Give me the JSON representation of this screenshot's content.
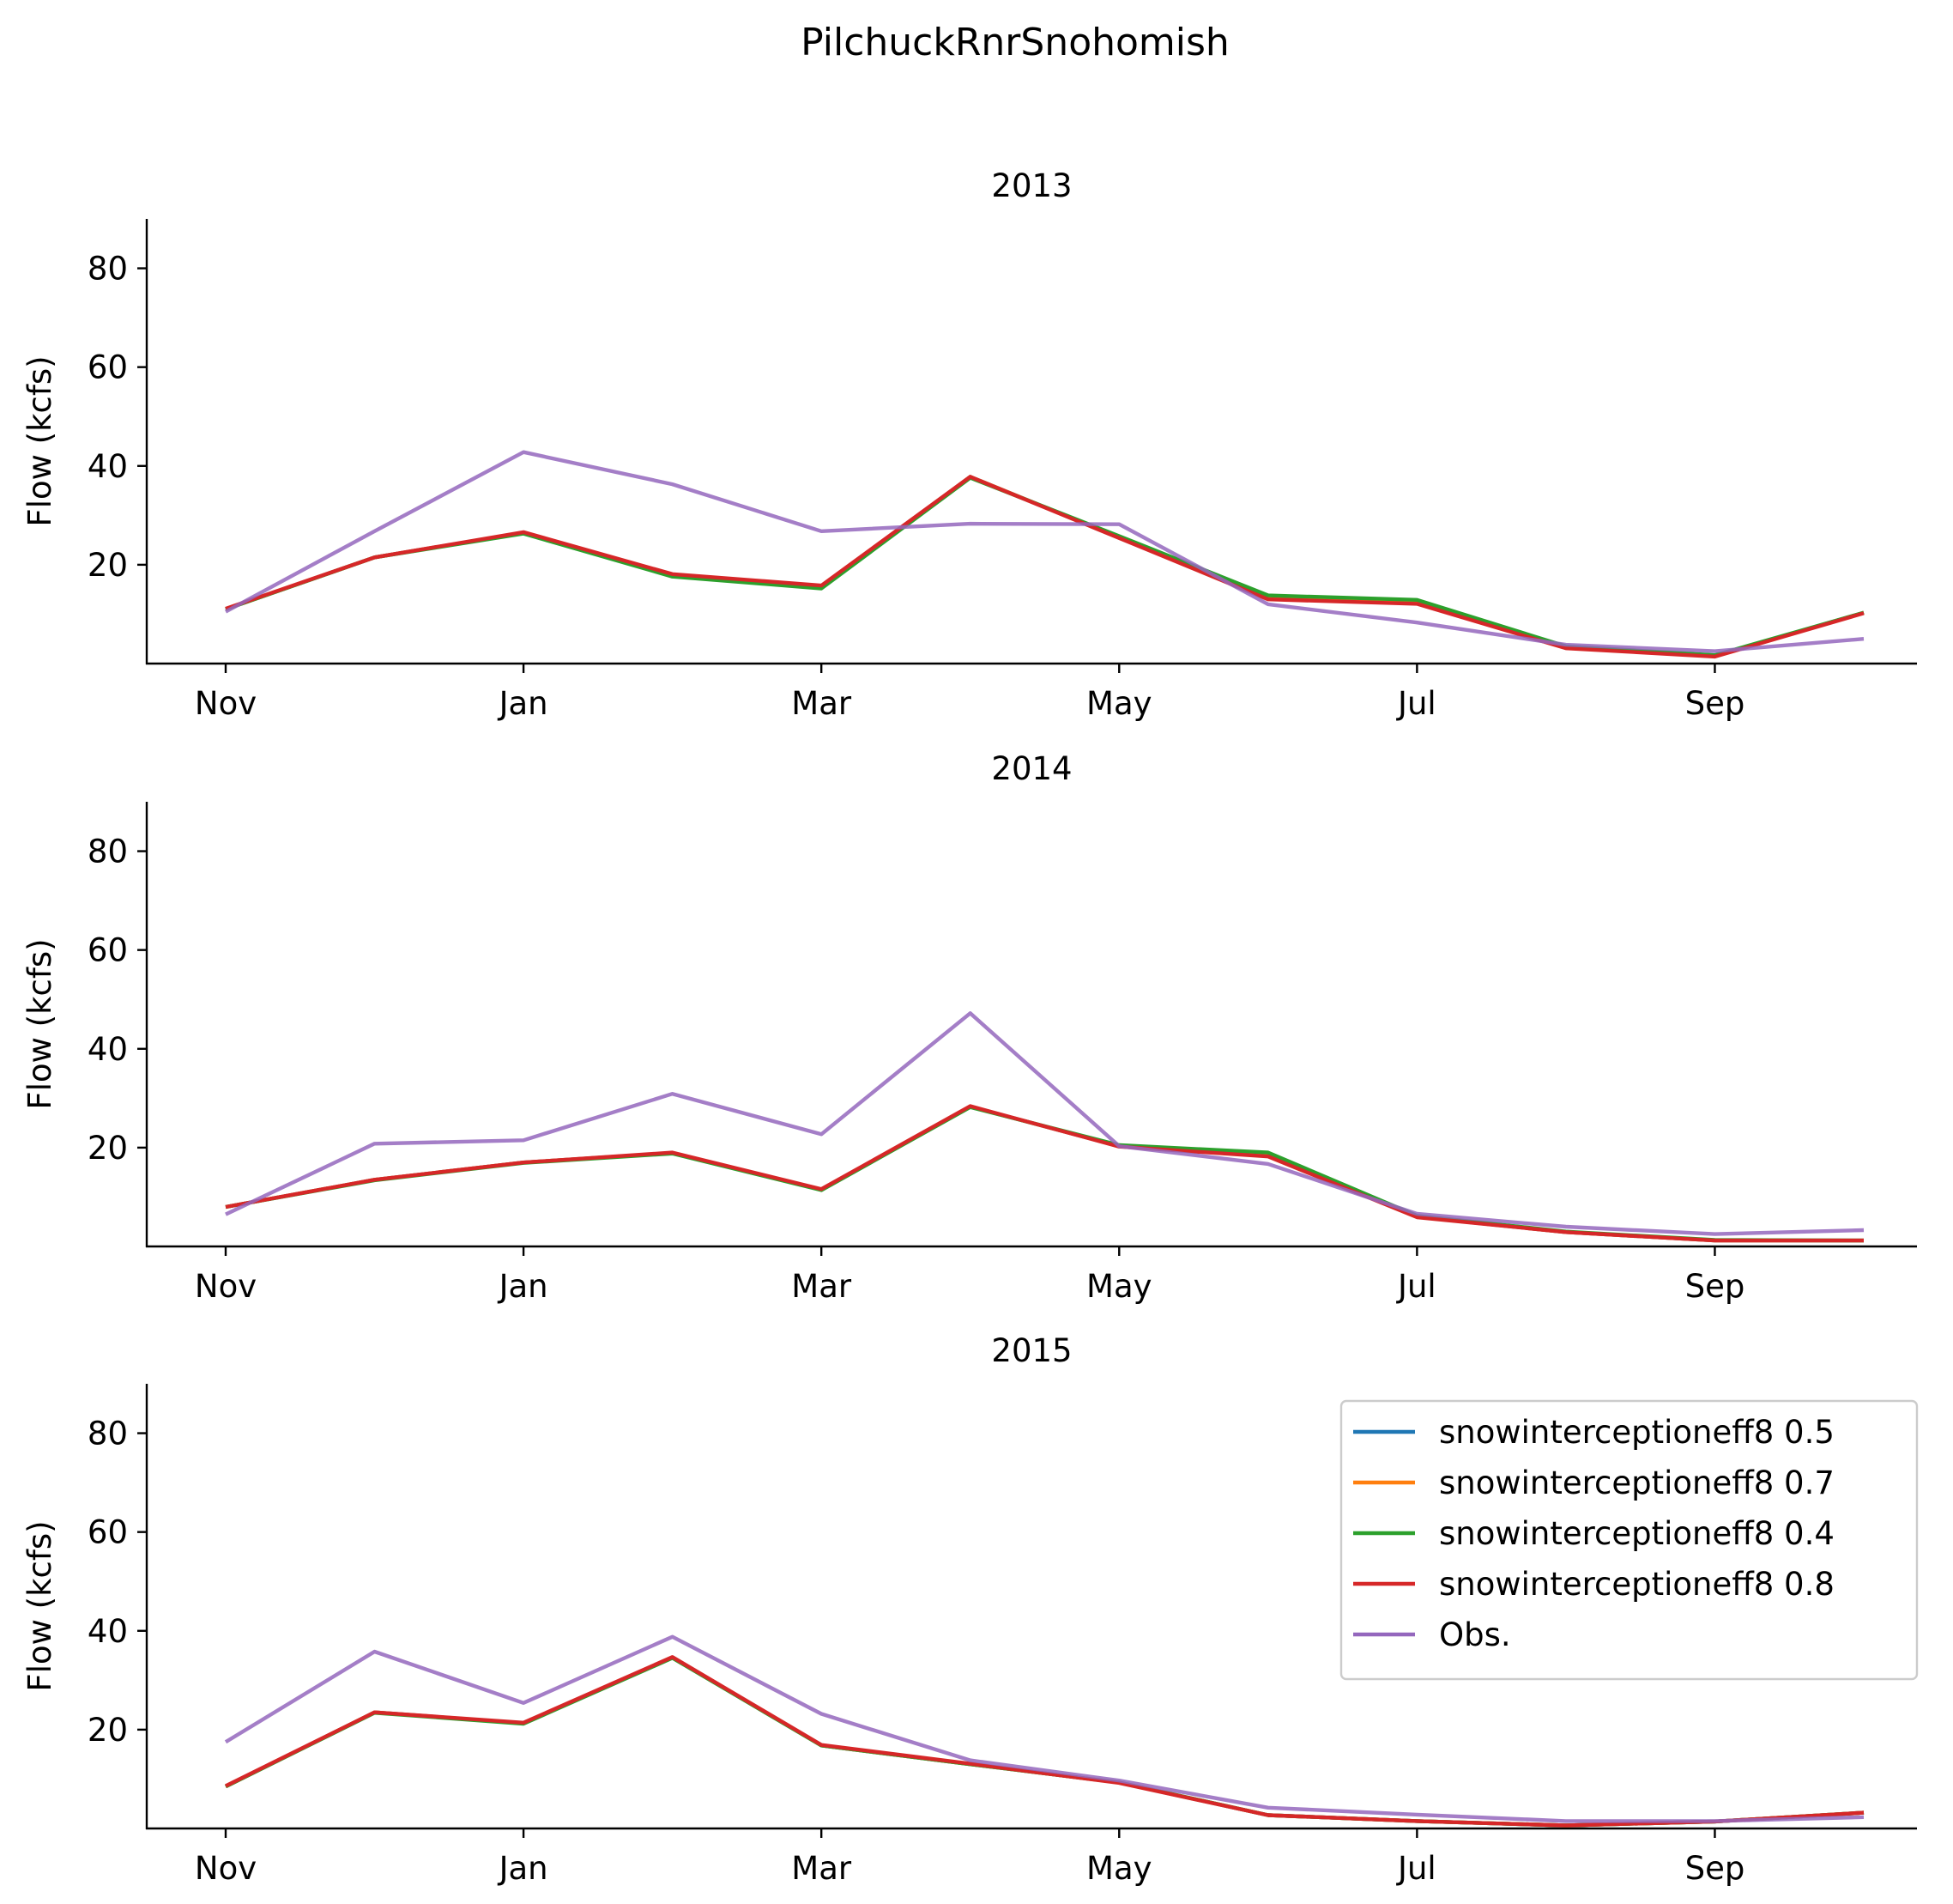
{
  "figure_title": "PilchuckRnrSnohomish",
  "colors": {
    "snowinterceptioneff8 0.5": "#1f77b4",
    "snowinterceptioneff8 0.7": "#ff7f0e",
    "snowinterceptioneff8 0.4": "#2ca02c",
    "snowinterceptioneff8 0.8": "#d62728",
    "Obs.": "#9467bd"
  },
  "chart_data": [
    {
      "type": "line",
      "title": "2013",
      "xlabel": "",
      "ylabel": "Flow (kcfs)",
      "x": [
        "2012-11",
        "2012-12",
        "2013-01",
        "2013-02",
        "2013-03",
        "2013-04",
        "2013-05",
        "2013-06",
        "2013-07",
        "2013-08",
        "2013-09",
        "2013-10"
      ],
      "xticks": [
        "Nov",
        "Jan",
        "Mar",
        "May",
        "Jul",
        "Sep"
      ],
      "yticks": [
        20,
        40,
        60,
        80
      ],
      "ylim": [
        0,
        90
      ],
      "grid": false,
      "series": [
        {
          "name": "snowinterceptioneff8 0.5",
          "values": [
            11.0,
            21.5,
            26.5,
            18.0,
            15.5,
            37.8,
            25.5,
            13.3,
            12.5,
            3.2,
            1.5,
            10.3
          ]
        },
        {
          "name": "snowinterceptioneff8 0.7",
          "values": [
            11.0,
            21.5,
            26.5,
            18.0,
            15.5,
            37.8,
            25.5,
            13.3,
            12.5,
            3.2,
            1.5,
            10.3
          ]
        },
        {
          "name": "snowinterceptioneff8 0.4",
          "values": [
            11.0,
            21.5,
            26.3,
            17.6,
            15.2,
            37.6,
            25.8,
            13.8,
            12.9,
            3.5,
            1.7,
            10.3
          ]
        },
        {
          "name": "snowinterceptioneff8 0.8",
          "values": [
            11.1,
            21.5,
            26.6,
            18.1,
            15.8,
            37.8,
            25.4,
            13.0,
            12.1,
            3.1,
            1.4,
            10.2
          ]
        },
        {
          "name": "Obs.",
          "values": [
            10.5,
            26.8,
            42.8,
            36.3,
            26.8,
            28.3,
            28.2,
            12.0,
            8.3,
            3.8,
            2.5,
            5.0
          ]
        }
      ]
    },
    {
      "type": "line",
      "title": "2014",
      "xlabel": "",
      "ylabel": "Flow (kcfs)",
      "x": [
        "2013-11",
        "2013-12",
        "2014-01",
        "2014-02",
        "2014-03",
        "2014-04",
        "2014-05",
        "2014-06",
        "2014-07",
        "2014-08",
        "2014-09",
        "2014-10"
      ],
      "xticks": [
        "Nov",
        "Jan",
        "Mar",
        "May",
        "Jul",
        "Sep"
      ],
      "yticks": [
        20,
        40,
        60,
        80
      ],
      "ylim": [
        0,
        90
      ],
      "grid": false,
      "series": [
        {
          "name": "snowinterceptioneff8 0.5",
          "values": [
            8.0,
            13.5,
            17.0,
            18.9,
            11.5,
            28.3,
            20.3,
            18.5,
            6.0,
            2.9,
            1.2,
            1.2
          ]
        },
        {
          "name": "snowinterceptioneff8 0.7",
          "values": [
            8.0,
            13.5,
            17.0,
            18.9,
            11.5,
            28.3,
            20.3,
            18.5,
            6.0,
            2.9,
            1.2,
            1.2
          ]
        },
        {
          "name": "snowinterceptioneff8 0.4",
          "values": [
            8.0,
            13.4,
            16.9,
            18.8,
            11.4,
            28.2,
            20.5,
            19.0,
            6.2,
            3.0,
            1.3,
            1.2
          ]
        },
        {
          "name": "snowinterceptioneff8 0.8",
          "values": [
            8.0,
            13.5,
            17.0,
            19.0,
            11.6,
            28.4,
            20.2,
            18.2,
            5.9,
            2.9,
            1.2,
            1.2
          ]
        },
        {
          "name": "Obs.",
          "values": [
            6.5,
            20.8,
            21.5,
            30.9,
            22.7,
            47.2,
            20.3,
            16.7,
            6.6,
            4.0,
            2.5,
            3.3
          ]
        }
      ]
    },
    {
      "type": "line",
      "title": "2015",
      "xlabel": "",
      "ylabel": "Flow (kcfs)",
      "x": [
        "2014-11",
        "2014-12",
        "2015-01",
        "2015-02",
        "2015-03",
        "2015-04",
        "2015-05",
        "2015-06",
        "2015-07",
        "2015-08",
        "2015-09",
        "2015-10"
      ],
      "xticks": [
        "Nov",
        "Jan",
        "Mar",
        "May",
        "Jul",
        "Sep"
      ],
      "yticks": [
        20,
        40,
        60,
        80
      ],
      "ylim": [
        0,
        90
      ],
      "grid": false,
      "legend": "upper right",
      "series": [
        {
          "name": "snowinterceptioneff8 0.5",
          "values": [
            8.5,
            23.5,
            21.3,
            34.6,
            16.8,
            13.0,
            9.3,
            2.7,
            1.5,
            0.6,
            1.4,
            3.2
          ]
        },
        {
          "name": "snowinterceptioneff8 0.7",
          "values": [
            8.5,
            23.5,
            21.3,
            34.6,
            16.8,
            13.0,
            9.3,
            2.7,
            1.5,
            0.6,
            1.4,
            3.2
          ]
        },
        {
          "name": "snowinterceptioneff8 0.4",
          "values": [
            8.5,
            23.4,
            21.2,
            34.5,
            16.8,
            13.0,
            9.3,
            2.7,
            1.5,
            0.6,
            1.4,
            3.2
          ]
        },
        {
          "name": "snowinterceptioneff8 0.8",
          "values": [
            8.6,
            23.5,
            21.4,
            34.7,
            16.9,
            13.1,
            9.2,
            2.7,
            1.5,
            0.6,
            1.4,
            3.2
          ]
        },
        {
          "name": "Obs.",
          "values": [
            17.5,
            35.8,
            25.4,
            38.8,
            23.2,
            13.8,
            9.7,
            4.2,
            2.8,
            1.5,
            1.5,
            2.3
          ]
        }
      ]
    }
  ]
}
